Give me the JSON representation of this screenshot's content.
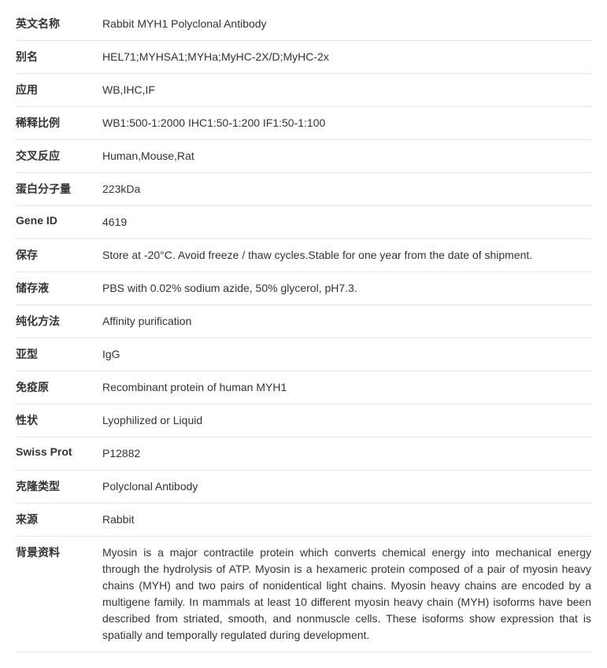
{
  "rows": [
    {
      "label": "英文名称",
      "value": "Rabbit MYH1 Polyclonal Antibody"
    },
    {
      "label": "别名",
      "value": "HEL71;MYHSA1;MYHa;MyHC-2X/D;MyHC-2x"
    },
    {
      "label": "应用",
      "value": "WB,IHC,IF"
    },
    {
      "label": "稀释比例",
      "value": "WB1:500-1:2000 IHC1:50-1:200 IF1:50-1:100"
    },
    {
      "label": "交叉反应",
      "value": "Human,Mouse,Rat"
    },
    {
      "label": "蛋白分子量",
      "value": "223kDa"
    },
    {
      "label": "Gene ID",
      "value": "4619"
    },
    {
      "label": "保存",
      "value": "Store at -20°C. Avoid freeze / thaw cycles.Stable for one year from the date of shipment."
    },
    {
      "label": "储存液",
      "value": "PBS with 0.02% sodium azide, 50% glycerol, pH7.3."
    },
    {
      "label": "纯化方法",
      "value": "Affinity purification"
    },
    {
      "label": "亚型",
      "value": "IgG"
    },
    {
      "label": "免疫原",
      "value": "Recombinant protein of human MYH1"
    },
    {
      "label": "性状",
      "value": "Lyophilized or Liquid"
    },
    {
      "label": "Swiss Prot",
      "value": "P12882"
    },
    {
      "label": "克隆类型",
      "value": "Polyclonal Antibody"
    },
    {
      "label": "来源",
      "value": "Rabbit"
    },
    {
      "label": "背景资料",
      "value": "Myosin is a major contractile protein which converts chemical energy into mechanical energy through the hydrolysis of ATP. Myosin is a hexameric protein composed of a pair of myosin heavy chains (MYH) and two pairs of nonidentical light chains. Myosin heavy chains are encoded by a multigene family. In mammals at least 10 different myosin heavy chain (MYH) isoforms have been described from striated, smooth, and nonmuscle cells. These isoforms show expression that is spatially and temporally regulated during development."
    }
  ]
}
